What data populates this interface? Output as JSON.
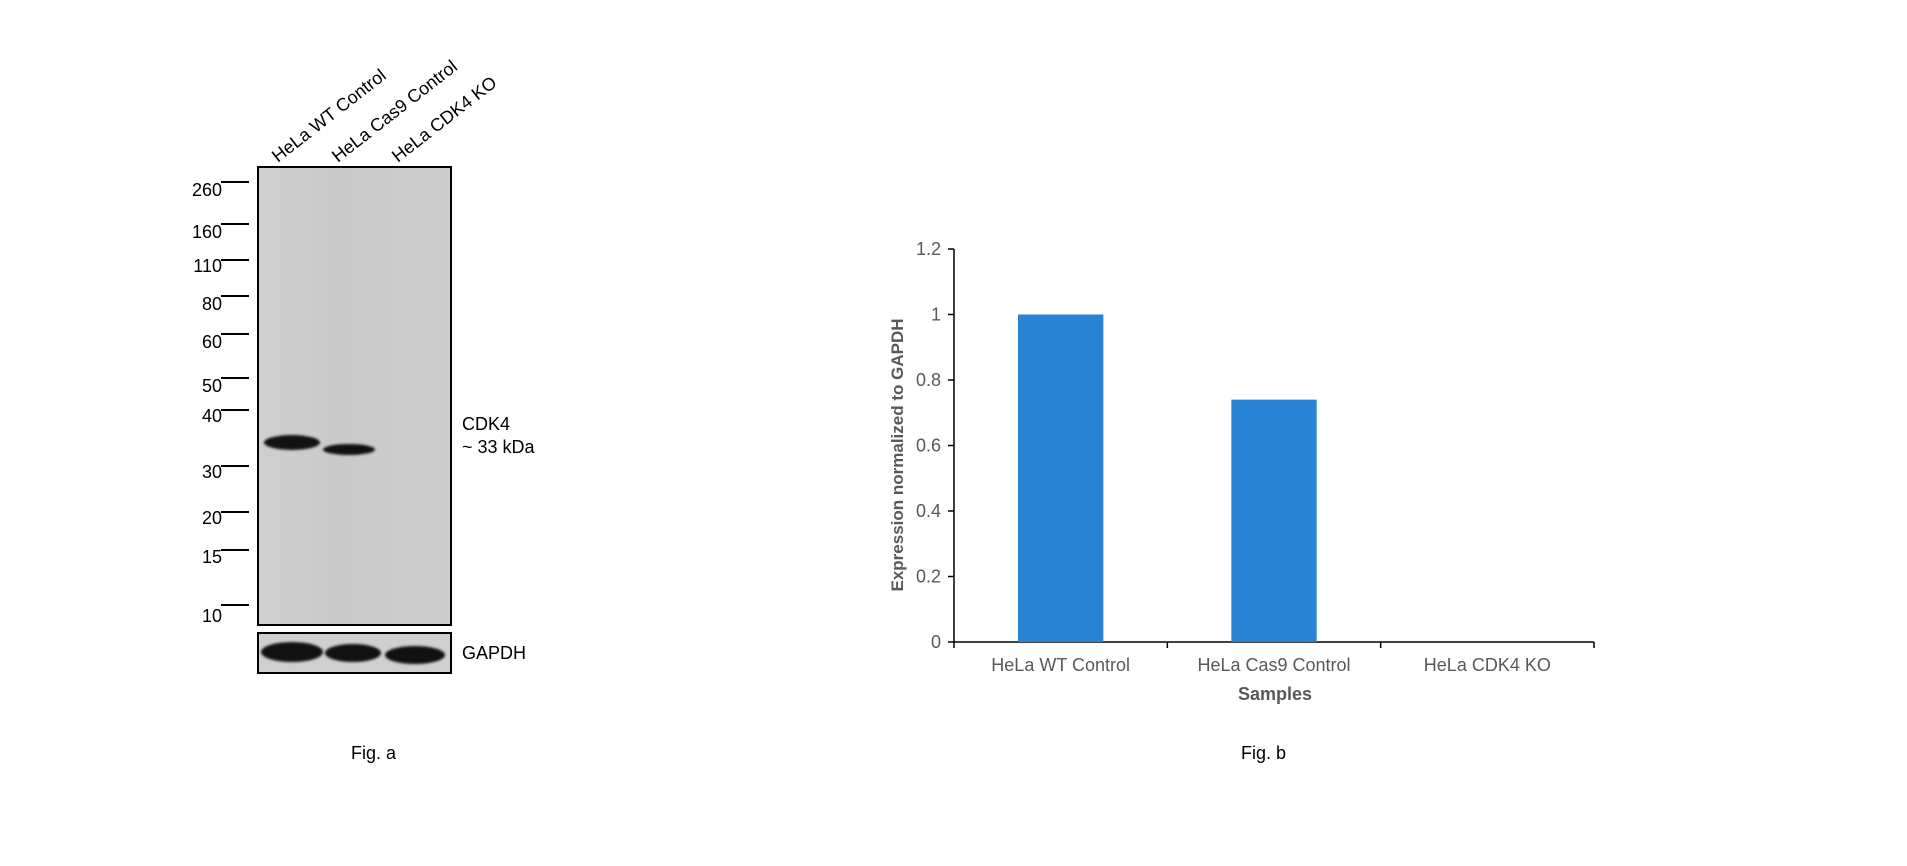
{
  "fig_a": {
    "lanes": [
      "HeLa WT Control",
      "HeLa Cas9 Control",
      "HeLa CDK4 KO"
    ],
    "mw_markers": [
      "260",
      "160",
      "110",
      "80",
      "60",
      "50",
      "40",
      "30",
      "20",
      "15",
      "10"
    ],
    "target_label": "CDK4",
    "target_size": "~ 33 kDa",
    "loading_control": "GAPDH",
    "caption": "Fig. a"
  },
  "fig_b": {
    "caption": "Fig. b"
  },
  "chart_data": {
    "type": "bar",
    "categories": [
      "HeLa WT Control",
      "HeLa Cas9 Control",
      "HeLa CDK4 KO"
    ],
    "values": [
      1.0,
      0.74,
      0.0
    ],
    "xlabel": "Samples",
    "ylabel": "Expression normalized to GAPDH",
    "ylim": [
      0,
      1.2
    ],
    "yticks": [
      "0",
      "0.2",
      "0.4",
      "0.6",
      "0.8",
      "1",
      "1.2"
    ],
    "grid": false,
    "legend": "none",
    "bar_color": "#2a82d2"
  }
}
